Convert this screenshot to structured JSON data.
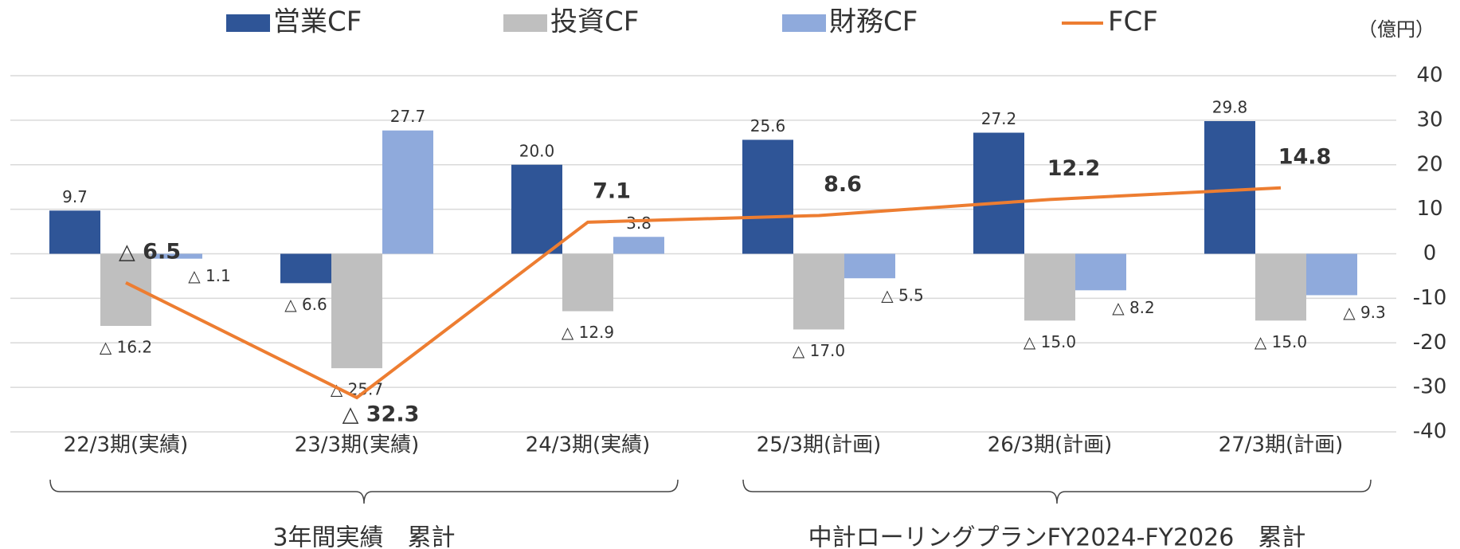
{
  "chart_data": {
    "type": "bar",
    "categories": [
      "22/3期(実績)",
      "23/3期(実績)",
      "24/3期(実績)",
      "25/3期(計画)",
      "26/3期(計画)",
      "27/3期(計画)"
    ],
    "series": [
      {
        "name": "営業CF",
        "type": "bar",
        "color": "#2f5597",
        "values": [
          9.7,
          -6.6,
          20.0,
          25.6,
          27.2,
          29.8
        ],
        "value_labels": [
          "9.7",
          "△ 6.6",
          "20.0",
          "25.6",
          "27.2",
          "29.8"
        ]
      },
      {
        "name": "投資CF",
        "type": "bar",
        "color": "#bfbfbf",
        "values": [
          -16.2,
          -25.7,
          -12.9,
          -17.0,
          -15.0,
          -15.0
        ],
        "value_labels": [
          "△ 16.2",
          "△ 25.7",
          "△ 12.9",
          "△ 17.0",
          "△ 15.0",
          "△ 15.0"
        ]
      },
      {
        "name": "財務CF",
        "type": "bar",
        "color": "#8faadc",
        "values": [
          -1.1,
          27.7,
          3.8,
          -5.5,
          -8.2,
          -9.3
        ],
        "value_labels": [
          "△ 1.1",
          "27.7",
          "3.8",
          "△ 5.5",
          "△ 8.2",
          "△ 9.3"
        ]
      },
      {
        "name": "FCF",
        "type": "line",
        "color": "#ed7d31",
        "values": [
          -6.5,
          -32.3,
          7.1,
          8.6,
          12.2,
          14.8
        ],
        "value_labels": [
          "△ 6.5",
          "△ 32.3",
          "7.1",
          "8.6",
          "12.2",
          "14.8"
        ]
      }
    ],
    "y_axis_label": "（億円）",
    "ylim": [
      -40,
      40
    ],
    "yticks": [
      -40,
      -30,
      -20,
      -10,
      0,
      10,
      20,
      30,
      40
    ],
    "grid": true,
    "legend": "top",
    "annotations": [
      "3年間実績　累計",
      "中計ローリングプランFY2024-FY2026　累計"
    ]
  }
}
